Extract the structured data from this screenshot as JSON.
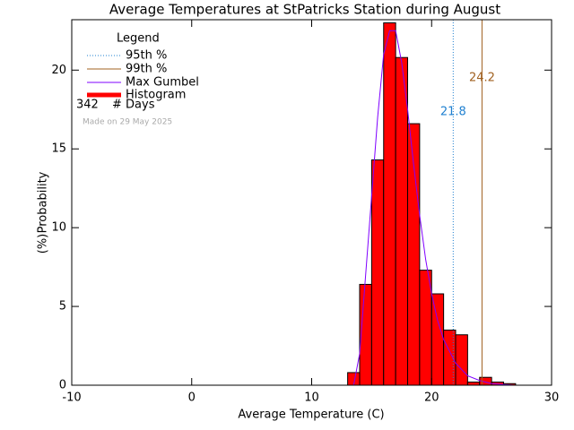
{
  "chart_data": {
    "type": "histogram",
    "title": "Average Temperatures at StPatricks Station during August",
    "xlabel": "Average Temperature (C)",
    "ylabel": "Probability",
    "ylabel_unit": "(%)",
    "name": "Histogram",
    "color": "#ff0000",
    "bins": [
      13,
      14,
      15,
      16,
      17,
      18,
      19,
      20,
      21,
      22,
      23,
      24,
      25,
      26,
      27
    ],
    "values": [
      0.8,
      6.4,
      14.3,
      23.0,
      20.8,
      16.6,
      7.3,
      5.8,
      3.5,
      3.2,
      0.2,
      0.5,
      0.2,
      0.1
    ],
    "gumbel": {
      "name": "Max Gumbel",
      "color": "#7f00ff",
      "x": [
        13.5,
        14,
        14.5,
        15,
        15.5,
        16,
        16.5,
        17,
        17.5,
        18,
        18.5,
        19,
        19.5,
        20,
        20.5,
        21,
        22,
        23,
        24,
        25,
        26,
        27
      ],
      "values": [
        0,
        2,
        7,
        12,
        17,
        21,
        22.5,
        22.5,
        20.5,
        17.5,
        14,
        10.8,
        8,
        5.8,
        4.1,
        2.9,
        1.4,
        0.6,
        0.3,
        0.1,
        0.04,
        0
      ]
    },
    "percentiles": [
      {
        "name": "95th %",
        "value": 21.8,
        "value_label": "21.8",
        "color": "#1f80d0",
        "style": "dotted"
      },
      {
        "name": "99th %",
        "value": 24.2,
        "value_label": "24.2",
        "color": "#a0601f",
        "style": "solid"
      }
    ],
    "legend_title": "Legend",
    "days": 342,
    "days_label": "# Days",
    "note": "Made on 29 May 2025",
    "xlim": [
      -10,
      30
    ],
    "xticks": [
      -10,
      0,
      10,
      20,
      30
    ],
    "ylim": [
      0,
      23.2
    ],
    "yticks": [
      0,
      5,
      10,
      15,
      20
    ]
  }
}
